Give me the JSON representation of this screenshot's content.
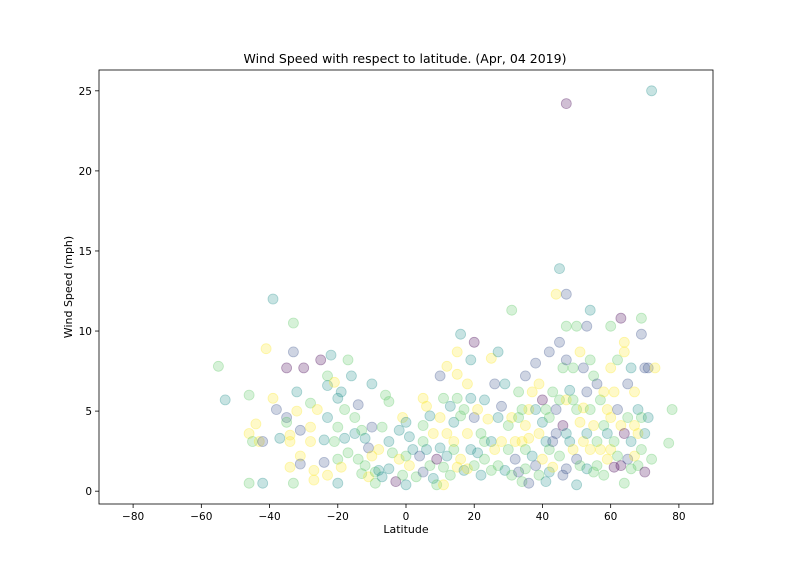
{
  "chart_data": {
    "type": "scatter",
    "title": "Wind Speed with respect to latitude. (Apr, 04 2019)",
    "xlabel": "Latitude",
    "ylabel": "Wind Speed (mph)",
    "xlim": [
      -90,
      90
    ],
    "ylim": [
      -0.8,
      26.3
    ],
    "xticks": [
      "−80",
      "−60",
      "−40",
      "−20",
      "0",
      "20",
      "40",
      "60",
      "80"
    ],
    "yticks": [
      "0",
      "5",
      "10",
      "15",
      "20",
      "25"
    ],
    "colormap": [
      "#440154",
      "#3b528b",
      "#21908d",
      "#5dc963",
      "#fde725"
    ],
    "marker_alpha": 0.25,
    "grid": false,
    "points": [
      [
        -55,
        7.8
      ],
      [
        -53,
        5.7
      ],
      [
        -46,
        6.0
      ],
      [
        -46,
        3.6
      ],
      [
        -45,
        3.1
      ],
      [
        -46,
        0.5
      ],
      [
        -44,
        4.2
      ],
      [
        -43,
        3.1
      ],
      [
        -42,
        3.1
      ],
      [
        -41,
        8.9
      ],
      [
        -42,
        0.5
      ],
      [
        -39,
        12.0
      ],
      [
        -39,
        5.8
      ],
      [
        -38,
        5.1
      ],
      [
        -37,
        3.3
      ],
      [
        -35,
        7.7
      ],
      [
        -35,
        4.6
      ],
      [
        -35,
        4.3
      ],
      [
        -34,
        3.1
      ],
      [
        -34,
        3.5
      ],
      [
        -34,
        1.5
      ],
      [
        -33,
        8.7
      ],
      [
        -33,
        10.5
      ],
      [
        -33,
        0.5
      ],
      [
        -32,
        6.2
      ],
      [
        -32,
        5.0
      ],
      [
        -31,
        3.8
      ],
      [
        -31,
        2.2
      ],
      [
        -31,
        1.7
      ],
      [
        -30,
        7.7
      ],
      [
        -28,
        5.5
      ],
      [
        -28,
        4.0
      ],
      [
        -28,
        3.1
      ],
      [
        -27,
        1.3
      ],
      [
        -27,
        0.7
      ],
      [
        -26,
        5.1
      ],
      [
        -25,
        8.2
      ],
      [
        -24,
        3.2
      ],
      [
        -24,
        1.8
      ],
      [
        -23,
        7.2
      ],
      [
        -23,
        6.6
      ],
      [
        -23,
        4.6
      ],
      [
        -23,
        1.0
      ],
      [
        -22,
        8.5
      ],
      [
        -21,
        6.8
      ],
      [
        -21,
        3.1
      ],
      [
        -20,
        5.8
      ],
      [
        -20,
        4.0
      ],
      [
        -20,
        2.0
      ],
      [
        -20,
        0.5
      ],
      [
        -19,
        6.2
      ],
      [
        -19,
        1.5
      ],
      [
        -18,
        5.1
      ],
      [
        -18,
        3.3
      ],
      [
        -17,
        8.2
      ],
      [
        -17,
        2.4
      ],
      [
        -16,
        7.2
      ],
      [
        -15,
        4.6
      ],
      [
        -15,
        3.6
      ],
      [
        -14,
        5.4
      ],
      [
        -14,
        2.0
      ],
      [
        -13,
        3.8
      ],
      [
        -13,
        1.1
      ],
      [
        -12,
        3.3
      ],
      [
        -12,
        1.6
      ],
      [
        -11,
        2.7
      ],
      [
        -11,
        0.9
      ],
      [
        -10,
        6.7
      ],
      [
        -10,
        4.0
      ],
      [
        -10,
        2.2
      ],
      [
        -9,
        1.2
      ],
      [
        -9,
        0.5
      ],
      [
        -8,
        2.6
      ],
      [
        -8,
        1.3
      ],
      [
        -7,
        4.0
      ],
      [
        -7,
        0.9
      ],
      [
        -6,
        6.0
      ],
      [
        -5,
        5.6
      ],
      [
        -5,
        3.1
      ],
      [
        -5,
        1.4
      ],
      [
        -4,
        2.4
      ],
      [
        -3,
        0.6
      ],
      [
        -2,
        3.8
      ],
      [
        -2,
        2.0
      ],
      [
        -1,
        4.6
      ],
      [
        -1,
        1.0
      ],
      [
        0,
        4.3
      ],
      [
        0,
        2.2
      ],
      [
        0,
        0.4
      ],
      [
        1,
        3.4
      ],
      [
        1,
        1.6
      ],
      [
        2,
        2.6
      ],
      [
        3,
        0.9
      ],
      [
        4,
        2.2
      ],
      [
        5,
        5.8
      ],
      [
        5,
        4.1
      ],
      [
        5,
        3.1
      ],
      [
        5,
        1.2
      ],
      [
        6,
        5.3
      ],
      [
        6,
        2.6
      ],
      [
        7,
        4.7
      ],
      [
        7,
        1.6
      ],
      [
        8,
        3.6
      ],
      [
        8,
        0.8
      ],
      [
        9,
        2.0
      ],
      [
        9,
        0.4
      ],
      [
        10,
        7.2
      ],
      [
        10,
        4.6
      ],
      [
        10,
        2.7
      ],
      [
        11,
        5.8
      ],
      [
        11,
        1.5
      ],
      [
        11,
        0.4
      ],
      [
        12,
        7.8
      ],
      [
        12,
        3.6
      ],
      [
        12,
        2.2
      ],
      [
        13,
        5.3
      ],
      [
        13,
        1.0
      ],
      [
        14,
        4.3
      ],
      [
        14,
        3.1
      ],
      [
        14,
        2.6
      ],
      [
        15,
        8.7
      ],
      [
        15,
        7.3
      ],
      [
        15,
        5.8
      ],
      [
        15,
        1.5
      ],
      [
        16,
        9.8
      ],
      [
        16,
        4.7
      ],
      [
        16,
        2.0
      ],
      [
        17,
        5.1
      ],
      [
        17,
        1.3
      ],
      [
        18,
        6.7
      ],
      [
        18,
        3.6
      ],
      [
        18,
        1.4
      ],
      [
        19,
        8.2
      ],
      [
        19,
        5.8
      ],
      [
        19,
        2.6
      ],
      [
        20,
        9.3
      ],
      [
        20,
        4.6
      ],
      [
        20,
        1.6
      ],
      [
        21,
        5.1
      ],
      [
        21,
        2.4
      ],
      [
        22,
        3.6
      ],
      [
        22,
        1.0
      ],
      [
        23,
        5.7
      ],
      [
        23,
        3.1
      ],
      [
        23,
        2.0
      ],
      [
        24,
        4.5
      ],
      [
        25,
        8.3
      ],
      [
        25,
        3.1
      ],
      [
        25,
        1.3
      ],
      [
        26,
        6.7
      ],
      [
        26,
        2.6
      ],
      [
        27,
        8.7
      ],
      [
        27,
        4.6
      ],
      [
        27,
        1.6
      ],
      [
        28,
        5.3
      ],
      [
        28,
        3.1
      ],
      [
        29,
        6.7
      ],
      [
        29,
        1.3
      ],
      [
        30,
        4.1
      ],
      [
        30,
        2.6
      ],
      [
        31,
        11.3
      ],
      [
        31,
        4.6
      ],
      [
        31,
        1.0
      ],
      [
        32,
        3.1
      ],
      [
        32,
        2.0
      ],
      [
        33,
        6.2
      ],
      [
        33,
        4.6
      ],
      [
        33,
        1.2
      ],
      [
        34,
        5.1
      ],
      [
        34,
        3.1
      ],
      [
        34,
        0.6
      ],
      [
        35,
        7.2
      ],
      [
        35,
        4.1
      ],
      [
        35,
        2.6
      ],
      [
        35,
        1.4
      ],
      [
        36,
        5.1
      ],
      [
        36,
        3.3
      ],
      [
        36,
        0.5
      ],
      [
        37,
        6.2
      ],
      [
        37,
        2.2
      ],
      [
        38,
        8.0
      ],
      [
        38,
        5.1
      ],
      [
        38,
        1.6
      ],
      [
        39,
        6.7
      ],
      [
        39,
        3.6
      ],
      [
        39,
        1.0
      ],
      [
        40,
        5.7
      ],
      [
        40,
        4.3
      ],
      [
        40,
        2.0
      ],
      [
        41,
        5.1
      ],
      [
        41,
        3.1
      ],
      [
        41,
        0.6
      ],
      [
        42,
        8.7
      ],
      [
        42,
        4.6
      ],
      [
        42,
        2.6
      ],
      [
        42,
        1.2
      ],
      [
        43,
        6.2
      ],
      [
        43,
        3.1
      ],
      [
        43,
        1.5
      ],
      [
        44,
        5.1
      ],
      [
        44,
        12.3
      ],
      [
        44,
        3.6
      ],
      [
        45,
        13.9
      ],
      [
        45,
        9.3
      ],
      [
        45,
        5.7
      ],
      [
        45,
        2.2
      ],
      [
        46,
        7.7
      ],
      [
        46,
        4.1
      ],
      [
        46,
        1.0
      ],
      [
        47,
        24.2
      ],
      [
        47,
        12.3
      ],
      [
        47,
        10.3
      ],
      [
        47,
        8.2
      ],
      [
        47,
        5.7
      ],
      [
        47,
        3.6
      ],
      [
        47,
        1.4
      ],
      [
        48,
        6.3
      ],
      [
        48,
        3.1
      ],
      [
        49,
        7.7
      ],
      [
        49,
        5.7
      ],
      [
        49,
        2.6
      ],
      [
        50,
        10.3
      ],
      [
        50,
        5.1
      ],
      [
        50,
        2.0
      ],
      [
        50,
        0.4
      ],
      [
        51,
        8.7
      ],
      [
        51,
        4.3
      ],
      [
        51,
        1.6
      ],
      [
        52,
        7.7
      ],
      [
        52,
        5.2
      ],
      [
        52,
        3.1
      ],
      [
        53,
        10.3
      ],
      [
        53,
        6.2
      ],
      [
        53,
        3.6
      ],
      [
        53,
        1.4
      ],
      [
        54,
        11.3
      ],
      [
        54,
        8.2
      ],
      [
        54,
        5.1
      ],
      [
        54,
        2.6
      ],
      [
        55,
        7.2
      ],
      [
        55,
        4.1
      ],
      [
        55,
        1.2
      ],
      [
        56,
        6.7
      ],
      [
        56,
        3.1
      ],
      [
        56,
        1.6
      ],
      [
        57,
        5.7
      ],
      [
        57,
        2.6
      ],
      [
        58,
        6.2
      ],
      [
        58,
        4.1
      ],
      [
        58,
        1.0
      ],
      [
        59,
        5.1
      ],
      [
        59,
        3.6
      ],
      [
        59,
        2.0
      ],
      [
        60,
        10.3
      ],
      [
        60,
        7.7
      ],
      [
        60,
        4.6
      ],
      [
        60,
        2.6
      ],
      [
        61,
        6.2
      ],
      [
        61,
        3.1
      ],
      [
        61,
        1.5
      ],
      [
        62,
        8.2
      ],
      [
        62,
        5.1
      ],
      [
        62,
        2.2
      ],
      [
        63,
        10.8
      ],
      [
        63,
        4.1
      ],
      [
        63,
        1.6
      ],
      [
        64,
        9.3
      ],
      [
        64,
        8.7
      ],
      [
        64,
        3.6
      ],
      [
        64,
        0.5
      ],
      [
        65,
        6.7
      ],
      [
        65,
        4.6
      ],
      [
        65,
        2.0
      ],
      [
        66,
        7.7
      ],
      [
        66,
        3.1
      ],
      [
        66,
        1.4
      ],
      [
        67,
        6.2
      ],
      [
        67,
        4.1
      ],
      [
        67,
        2.2
      ],
      [
        68,
        5.1
      ],
      [
        68,
        3.6
      ],
      [
        68,
        1.6
      ],
      [
        69,
        10.8
      ],
      [
        69,
        9.8
      ],
      [
        69,
        4.6
      ],
      [
        69,
        2.6
      ],
      [
        70,
        7.7
      ],
      [
        70,
        3.6
      ],
      [
        70,
        1.2
      ],
      [
        71,
        7.7
      ],
      [
        71,
        4.6
      ],
      [
        72,
        25.0
      ],
      [
        72,
        2.0
      ],
      [
        73,
        7.7
      ],
      [
        77,
        3.0
      ],
      [
        78,
        5.1
      ]
    ]
  }
}
